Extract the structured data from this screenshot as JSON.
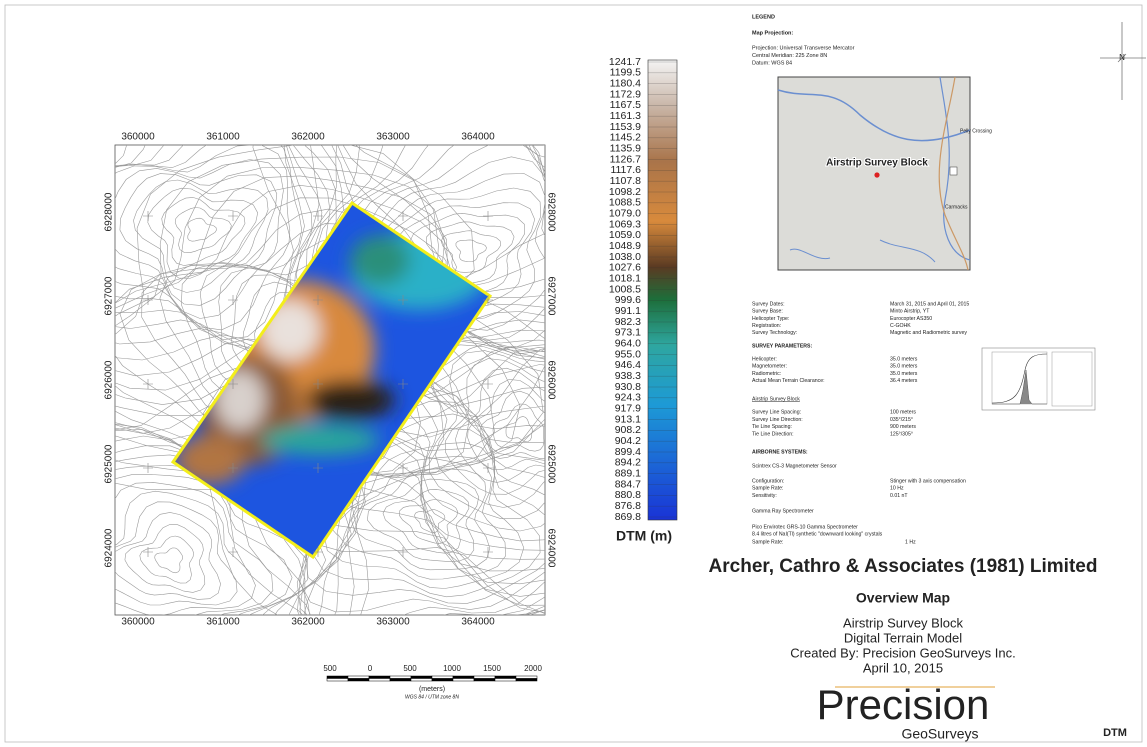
{
  "map": {
    "x_labels": [
      "360000",
      "361000",
      "362000",
      "363000",
      "364000"
    ],
    "y_labels": [
      "6928000",
      "6927000",
      "6926000",
      "6925000",
      "6924000"
    ]
  },
  "colorbar": {
    "labels": [
      "1241.7",
      "1199.5",
      "1180.4",
      "1172.9",
      "1167.5",
      "1161.3",
      "1153.9",
      "1145.2",
      "1135.9",
      "1126.7",
      "1117.6",
      "1107.8",
      "1098.2",
      "1088.5",
      "1079.0",
      "1069.3",
      "1059.0",
      "1048.9",
      "1038.0",
      "1027.6",
      "1018.1",
      "1008.5",
      "999.6",
      "991.1",
      "982.3",
      "973.1",
      "964.0",
      "955.0",
      "946.4",
      "938.3",
      "930.8",
      "924.3",
      "917.9",
      "913.1",
      "908.2",
      "904.2",
      "899.4",
      "894.2",
      "889.1",
      "884.7",
      "880.8",
      "876.8",
      "869.8"
    ],
    "title": "DTM (m)"
  },
  "scale_bar": {
    "labels": [
      "500",
      "0",
      "500",
      "1000",
      "1500",
      "2000"
    ],
    "unit": "(meters)",
    "projection": "WGS 84 / UTM zone 8N"
  },
  "north_arrow": "N",
  "legend": {
    "title": "LEGEND",
    "projection_heading": "Map Projection:",
    "projection_lines": [
      "Projection: Universal Transverse Mercator",
      "Central Meridian: 225 Zone 8N",
      "Datum: WGS 84"
    ]
  },
  "inset": {
    "block_label": "Airstrip Survey Block",
    "towns": [
      "Pelly Crossing",
      "Carmacks"
    ]
  },
  "survey_info": [
    [
      "Survey Dates:",
      "March 31, 2015 and April 01, 2015"
    ],
    [
      "Survey Base:",
      "Minto Airstrip, YT"
    ],
    [
      "Helicopter Type:",
      "Eurocopter AS350"
    ],
    [
      "Registration:",
      "C-GOHK"
    ],
    [
      "Survey Technology:",
      "Magnetic and Radiometric survey"
    ]
  ],
  "parameters_heading": "SURVEY PARAMETERS:",
  "parameters": [
    [
      "Helicopter:",
      "35.0 meters"
    ],
    [
      "Magnetometer:",
      "35.0 meters"
    ],
    [
      "Radiometric:",
      "35.0 meters"
    ],
    [
      "Actual Mean Terrain Clearance:",
      "36.4 meters"
    ]
  ],
  "block_heading": "Airstrip Survey Block",
  "block_rows": [
    [
      "Survey Line Spacing:",
      "100 meters"
    ],
    [
      "Survey Line Direction:",
      "035°/215°"
    ],
    [
      "Tie Line Spacing:",
      "900 meters"
    ],
    [
      "Tie Line Direction:",
      "125°/305°"
    ]
  ],
  "systems_heading": "AIRBORNE SYSTEMS:",
  "magnetometer_name": "Scintrex CS-3 Magnetometer Sensor",
  "magnetometer_rows": [
    [
      "Configuration:",
      "Stinger with 3 axis compensation"
    ],
    [
      "Sample Rate:",
      "10 Hz"
    ],
    [
      "Sensitivity:",
      "0.01 nT"
    ]
  ],
  "spectrometer_heading": "Gamma Ray Spectrometer",
  "spectrometer_lines": [
    "Pico Envirotec GRS-10 Gamma Spectrometer",
    "8.4 litres of NaI(Tl) synthetic \"downward looking\" crystals"
  ],
  "spectrometer_rate": [
    "Sample Rate:",
    "1 Hz"
  ],
  "title_block": {
    "company": "Archer, Cathro & Associates (1981) Limited",
    "heading": "Overview Map",
    "lines": [
      "Airstrip Survey Block",
      "Digital Terrain Model",
      "Created By: Precision GeoSurveys Inc.",
      "April 10, 2015"
    ],
    "logo_main": "Precision",
    "logo_sub": "GeoSurveys",
    "sheet": "DTM"
  }
}
